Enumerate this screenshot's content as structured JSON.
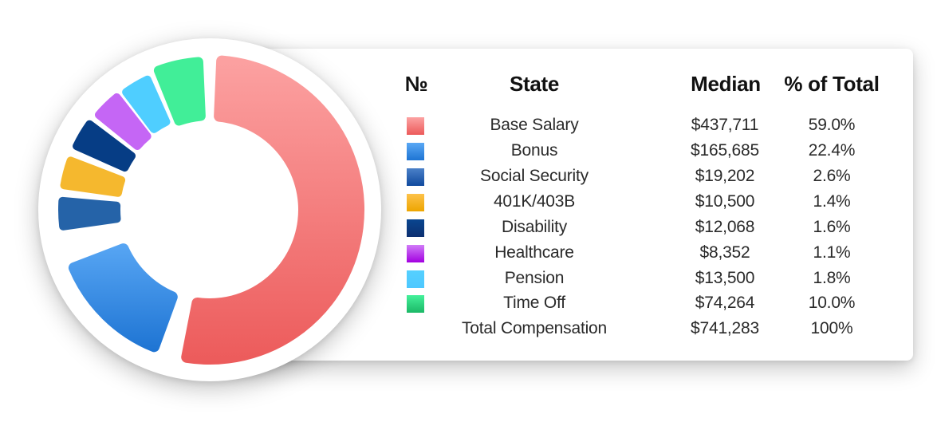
{
  "table": {
    "headers": {
      "number": "№",
      "state": "State",
      "median": "Median",
      "percent": "% of Total"
    },
    "rows": [
      {
        "label": "Base Salary",
        "median": "$437,711",
        "percent": "59.0%",
        "color_top": "#FCA2A2",
        "color_bottom": "#EC5A5A"
      },
      {
        "label": "Bonus",
        "median": "$165,685",
        "percent": "22.4%",
        "color_top": "#5AA8F5",
        "color_bottom": "#1E74D3"
      },
      {
        "label": "Social Security",
        "median": "$19,202",
        "percent": "2.6%",
        "color_top": "#4A80C8",
        "color_bottom": "#104A9E"
      },
      {
        "label": "401K/403B",
        "median": "$10,500",
        "percent": "1.4%",
        "color_top": "#FDC24A",
        "color_bottom": "#EDA500"
      },
      {
        "label": "Disability",
        "median": "$12,068",
        "percent": "1.6%",
        "color_top": "#0A4690",
        "color_bottom": "#0C2F70"
      },
      {
        "label": "Healthcare",
        "median": "$8,352",
        "percent": "1.1%",
        "color_top": "#D07CF8",
        "color_bottom": "#A300E0"
      },
      {
        "label": "Pension",
        "median": "$13,500",
        "percent": "1.8%",
        "color_top": "#55D0FF",
        "color_bottom": "#4DC8FF"
      },
      {
        "label": "Time Off",
        "median": "$74,264",
        "percent": "10.0%",
        "color_top": "#44F09A",
        "color_bottom": "#1BB866"
      }
    ],
    "total": {
      "label": "Total Compensation",
      "median": "$741,283",
      "percent": "100%"
    }
  },
  "chart_data": {
    "type": "pie",
    "subtype": "donut",
    "title": "",
    "categories": [
      "Base Salary",
      "Bonus",
      "Social Security",
      "401K/403B",
      "Disability",
      "Healthcare",
      "Pension",
      "Time Off"
    ],
    "values": [
      437711,
      165685,
      19202,
      10500,
      12068,
      8352,
      13500,
      74264
    ],
    "percent": [
      59.0,
      22.4,
      2.6,
      1.4,
      1.6,
      1.1,
      1.8,
      10.0
    ],
    "total": 741283,
    "colors": [
      "#F47A7A",
      "#2E86E0",
      "#2563A8",
      "#F5B82E",
      "#063D85",
      "#C566F5",
      "#4FCEFF",
      "#41EE98"
    ],
    "legend_position": "right (table)"
  }
}
